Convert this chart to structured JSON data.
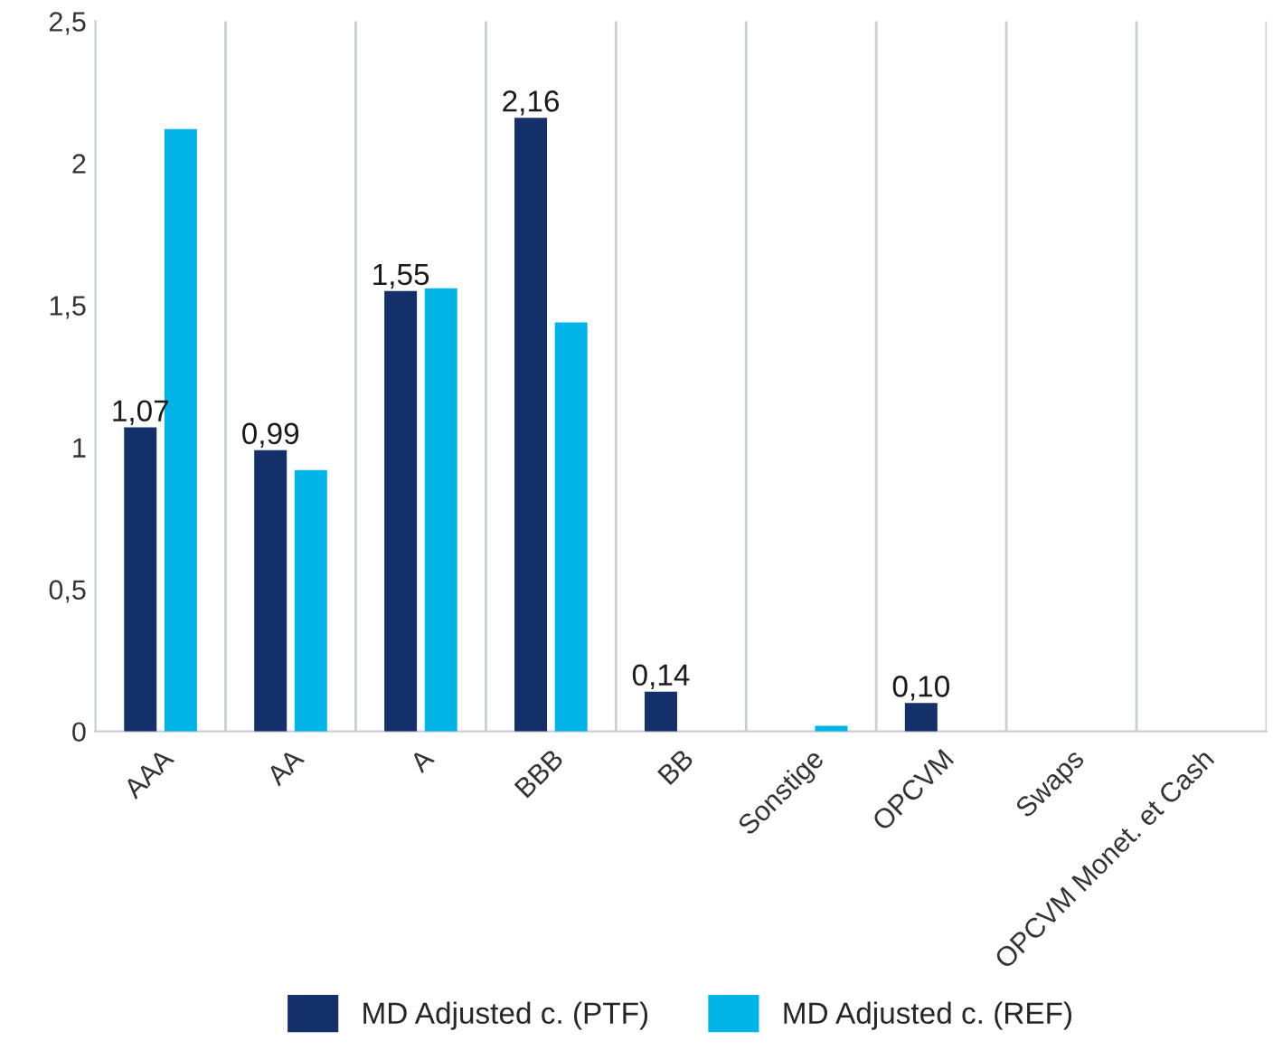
{
  "chart_data": {
    "type": "bar",
    "categories": [
      "AAA",
      "AA",
      "A",
      "BBB",
      "BB",
      "Sonstige",
      "OPCVM",
      "Swaps",
      "OPCVM Monet. et Cash"
    ],
    "series": [
      {
        "name": "MD Adjusted c. (PTF)",
        "color": "#14306b",
        "values": [
          1.07,
          0.99,
          1.55,
          2.16,
          0.14,
          null,
          0.1,
          null,
          null
        ],
        "value_labels": [
          "1,07",
          "0,99",
          "1,55",
          "2,16",
          "0,14",
          null,
          "0,10",
          null,
          null
        ]
      },
      {
        "name": "MD Adjusted c. (REF)",
        "color": "#00b4e6",
        "values": [
          2.12,
          0.92,
          1.56,
          1.44,
          null,
          0.02,
          null,
          null,
          null
        ]
      }
    ],
    "ylim": [
      0,
      2.5
    ],
    "yticks": [
      0,
      {
        "value": 0.5,
        "label": "0,5"
      },
      1,
      {
        "value": 1.5,
        "label": "1,5"
      },
      2,
      {
        "value": 2.5,
        "label": "2,5"
      }
    ],
    "grid": "x",
    "legend": "bottom"
  }
}
